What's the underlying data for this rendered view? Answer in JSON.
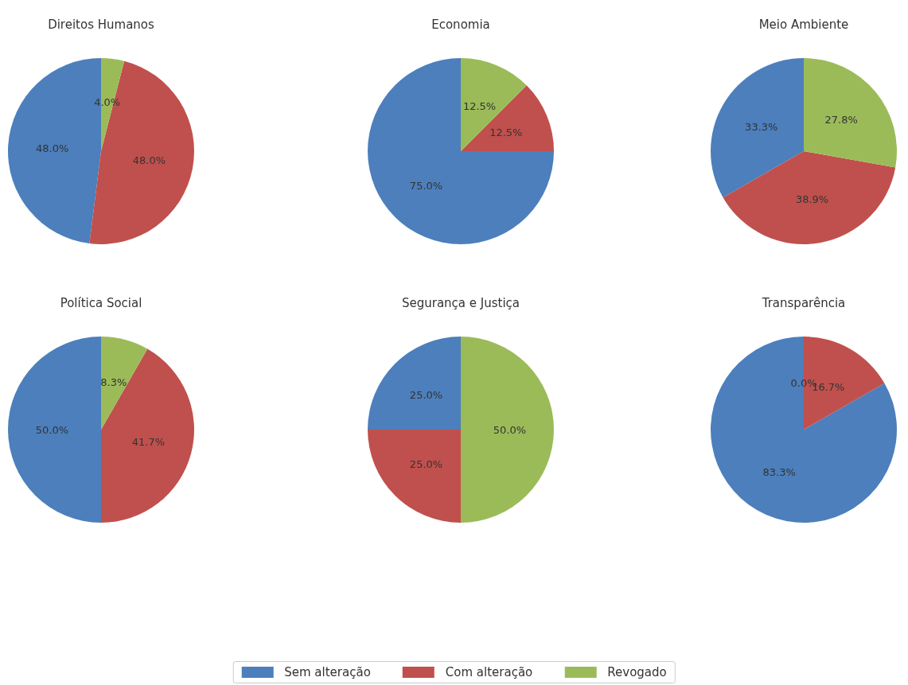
{
  "chart_data": [
    {
      "type": "pie",
      "title": "Direitos Humanos",
      "categories": [
        "Sem alteração",
        "Com alteração",
        "Revogado"
      ],
      "values": [
        48.0,
        48.0,
        4.0
      ],
      "value_labels": [
        "48.0%",
        "48.0%",
        "4.0%"
      ],
      "colors": [
        "#4c7fbc",
        "#c0504d",
        "#9bbb59"
      ],
      "legend": "bottom"
    },
    {
      "type": "pie",
      "title": "Economia",
      "categories": [
        null,
        null,
        null
      ],
      "values": [
        75.0,
        12.5,
        12.5
      ],
      "value_labels": [
        "75.0%",
        "12.5%",
        "12.5%"
      ],
      "colors": [
        "#4c7fbc",
        "#c0504d",
        "#9bbb59"
      ]
    },
    {
      "type": "pie",
      "title": "Meio Ambiente",
      "categories": [
        null,
        null,
        null
      ],
      "values": [
        33.3,
        38.9,
        27.8
      ],
      "value_labels": [
        "33.3%",
        "38.9%",
        "27.8%"
      ],
      "colors": [
        "#4c7fbc",
        "#c0504d",
        "#9bbb59"
      ]
    },
    {
      "type": "pie",
      "title": "Política Social",
      "categories": [
        null,
        null,
        null
      ],
      "values": [
        50.0,
        41.7,
        8.3
      ],
      "value_labels": [
        "50.0%",
        "41.7%",
        "8.3%"
      ],
      "colors": [
        "#4c7fbc",
        "#c0504d",
        "#9bbb59"
      ]
    },
    {
      "type": "pie",
      "title": "Segurança e Justiça",
      "categories": [
        null,
        null,
        null
      ],
      "values": [
        25.0,
        25.0,
        50.0
      ],
      "value_labels": [
        "25.0%",
        "25.0%",
        "50.0%"
      ],
      "colors": [
        "#4c7fbc",
        "#c0504d",
        "#9bbb59"
      ]
    },
    {
      "type": "pie",
      "title": "Transparência",
      "categories": [
        null,
        null,
        null
      ],
      "values": [
        83.3,
        16.7,
        0.0
      ],
      "value_labels": [
        "83.3%",
        "16.7%",
        "0.0%"
      ],
      "colors": [
        "#4c7fbc",
        "#c0504d",
        "#9bbb59"
      ]
    }
  ]
}
